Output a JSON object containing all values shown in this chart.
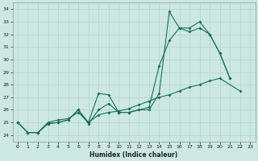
{
  "xlabel": "Humidex (Indice chaleur)",
  "bg_color": "#cce8e0",
  "grid_color": "#aacfc8",
  "line_color": "#1a6e5e",
  "x": [
    0,
    1,
    2,
    3,
    4,
    5,
    6,
    7,
    8,
    9,
    10,
    11,
    12,
    13,
    14,
    15,
    16,
    17,
    18,
    19,
    20,
    21,
    22,
    23
  ],
  "line1_y": [
    25.0,
    24.2,
    24.2,
    24.9,
    25.0,
    25.2,
    26.0,
    24.9,
    26.0,
    26.5,
    25.8,
    25.8,
    26.0,
    26.2,
    29.5,
    31.5,
    32.5,
    32.2,
    32.5,
    32.0,
    30.5,
    28.5,
    null,
    null
  ],
  "line2_y": [
    25.0,
    24.2,
    24.2,
    24.9,
    25.0,
    25.2,
    26.0,
    25.0,
    27.3,
    27.2,
    25.8,
    25.8,
    26.0,
    26.0,
    27.3,
    33.8,
    32.5,
    32.5,
    33.0,
    32.0,
    30.5,
    28.5,
    null,
    null
  ],
  "line3_y": [
    25.0,
    24.2,
    24.2,
    25.0,
    25.2,
    25.3,
    25.8,
    25.0,
    25.6,
    25.8,
    25.9,
    26.1,
    26.4,
    26.7,
    27.0,
    27.2,
    27.5,
    27.8,
    28.0,
    28.3,
    28.5,
    null,
    27.5,
    null
  ],
  "ylim": [
    23.5,
    34.5
  ],
  "xlim": [
    -0.5,
    23.5
  ],
  "yticks": [
    24,
    25,
    26,
    27,
    28,
    29,
    30,
    31,
    32,
    33,
    34
  ],
  "xtick_labels": [
    "0",
    "1",
    "2",
    "3",
    "4",
    "5",
    "6",
    "7",
    "8",
    "9",
    "10",
    "11",
    "12",
    "13",
    "14",
    "15",
    "16",
    "17",
    "18",
    "19",
    "20",
    "21",
    "22",
    "23"
  ]
}
